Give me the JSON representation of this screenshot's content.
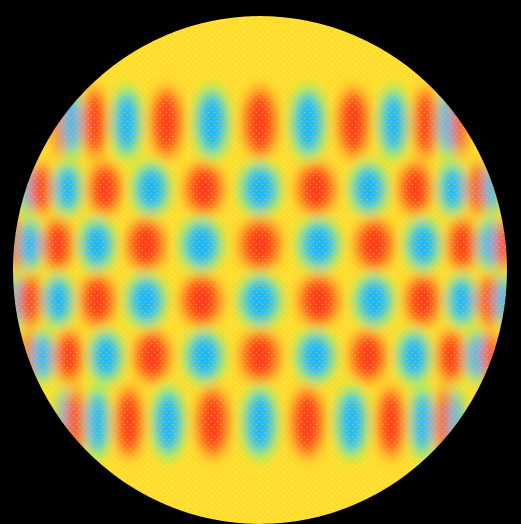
{
  "image": {
    "subject": "spherical-harmonic-pattern",
    "background_color": "#000000",
    "base_color": "#ffe033",
    "positive_color": "#ff3b1f",
    "negative_color": "#19b8ff",
    "transition_color": "#7dff60",
    "speckle_color": "#ffc21a"
  },
  "pattern": {
    "latitude_rows": 6,
    "longitude_lobes_visible": 8
  }
}
